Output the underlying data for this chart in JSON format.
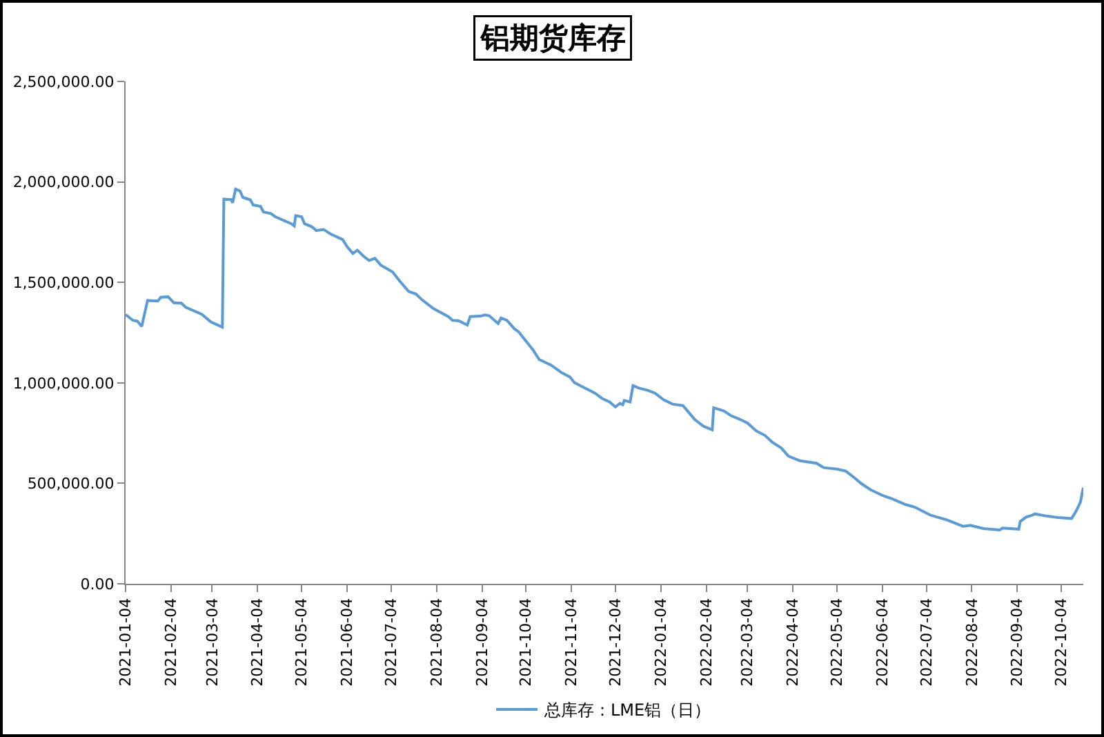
{
  "chart_data": {
    "type": "line",
    "title": "铝期货库存",
    "x": [
      "2021-01-04",
      "2021-01-09",
      "2021-01-12",
      "2021-01-15",
      "2021-01-19",
      "2021-01-26",
      "2021-01-28",
      "2021-02-02",
      "2021-02-06",
      "2021-02-11",
      "2021-02-14",
      "2021-02-25",
      "2021-03-03",
      "2021-03-11",
      "2021-03-12",
      "2021-03-17",
      "2021-03-18",
      "2021-03-20",
      "2021-03-23",
      "2021-03-25",
      "2021-03-30",
      "2021-04-01",
      "2021-04-06",
      "2021-04-08",
      "2021-04-13",
      "2021-04-16",
      "2021-04-27",
      "2021-04-29",
      "2021-04-30",
      "2021-05-04",
      "2021-05-06",
      "2021-05-11",
      "2021-05-14",
      "2021-05-19",
      "2021-05-24",
      "2021-06-01",
      "2021-06-04",
      "2021-06-08",
      "2021-06-11",
      "2021-06-15",
      "2021-06-19",
      "2021-06-23",
      "2021-06-27",
      "2021-07-05",
      "2021-07-10",
      "2021-07-16",
      "2021-07-21",
      "2021-07-25",
      "2021-08-02",
      "2021-08-12",
      "2021-08-15",
      "2021-08-19",
      "2021-08-25",
      "2021-08-27",
      "2021-09-03",
      "2021-09-06",
      "2021-09-09",
      "2021-09-15",
      "2021-09-17",
      "2021-09-21",
      "2021-09-26",
      "2021-09-29",
      "2021-10-04",
      "2021-10-09",
      "2021-10-13",
      "2021-10-21",
      "2021-10-28",
      "2021-11-03",
      "2021-11-06",
      "2021-11-12",
      "2021-11-20",
      "2021-11-25",
      "2021-11-30",
      "2021-12-04",
      "2021-12-07",
      "2021-12-09",
      "2021-12-10",
      "2021-12-14",
      "2021-12-16",
      "2021-12-20",
      "2021-12-26",
      "2021-12-31",
      "2022-01-06",
      "2022-01-12",
      "2022-01-19",
      "2022-01-23",
      "2022-01-27",
      "2022-02-02",
      "2022-02-08",
      "2022-02-09",
      "2022-02-16",
      "2022-02-21",
      "2022-02-27",
      "2022-03-04",
      "2022-03-10",
      "2022-03-16",
      "2022-03-21",
      "2022-03-27",
      "2022-04-01",
      "2022-04-09",
      "2022-04-20",
      "2022-04-25",
      "2022-05-04",
      "2022-05-10",
      "2022-05-16",
      "2022-05-21",
      "2022-05-27",
      "2022-06-04",
      "2022-06-11",
      "2022-06-20",
      "2022-06-26",
      "2022-07-07",
      "2022-07-18",
      "2022-07-29",
      "2022-08-03",
      "2022-08-12",
      "2022-08-23",
      "2022-08-25",
      "2022-09-05",
      "2022-09-06",
      "2022-09-10",
      "2022-09-14",
      "2022-09-16",
      "2022-09-24",
      "2022-10-02",
      "2022-10-11",
      "2022-10-14",
      "2022-10-17",
      "2022-10-19"
    ],
    "series": [
      {
        "name": "总库存：LME铝（日）",
        "color": "#5b9bd5",
        "values": [
          1340000,
          1311000,
          1307000,
          1281000,
          1410000,
          1407000,
          1426000,
          1428000,
          1398000,
          1397000,
          1376000,
          1341000,
          1304000,
          1277000,
          1914000,
          1912000,
          1896000,
          1964000,
          1955000,
          1923000,
          1911000,
          1885000,
          1878000,
          1850000,
          1843000,
          1827000,
          1792000,
          1781000,
          1832000,
          1827000,
          1792000,
          1777000,
          1758000,
          1763000,
          1740000,
          1713000,
          1678000,
          1644000,
          1660000,
          1632000,
          1609000,
          1620000,
          1586000,
          1552000,
          1506000,
          1455000,
          1442000,
          1414000,
          1369000,
          1330000,
          1311000,
          1309000,
          1288000,
          1330000,
          1332000,
          1338000,
          1334000,
          1295000,
          1323000,
          1311000,
          1270000,
          1254000,
          1208000,
          1162000,
          1116000,
          1089000,
          1052000,
          1029000,
          1001000,
          979000,
          949000,
          922000,
          905000,
          880000,
          898000,
          891000,
          912000,
          905000,
          986000,
          974000,
          963000,
          949000,
          915000,
          894000,
          887000,
          853000,
          818000,
          784000,
          766000,
          876000,
          860000,
          836000,
          818000,
          800000,
          761000,
          738000,
          704000,
          676000,
          635000,
          612000,
          600000,
          578000,
          571000,
          561000,
          527000,
          497000,
          468000,
          440000,
          422000,
          394000,
          382000,
          341000,
          318000,
          286000,
          291000,
          275000,
          268000,
          277000,
          272000,
          310000,
          332000,
          341000,
          348000,
          337000,
          330000,
          325000,
          360000,
          406000,
          479000
        ]
      }
    ],
    "xlim": [
      "2021-01-04",
      "2022-10-19"
    ],
    "xticks": [
      "2021-01-04",
      "2021-02-04",
      "2021-03-04",
      "2021-04-04",
      "2021-05-04",
      "2021-06-04",
      "2021-07-04",
      "2021-08-04",
      "2021-09-04",
      "2021-10-04",
      "2021-11-04",
      "2021-12-04",
      "2022-01-04",
      "2022-02-04",
      "2022-03-04",
      "2022-04-04",
      "2022-05-04",
      "2022-06-04",
      "2022-07-04",
      "2022-08-04",
      "2022-09-04",
      "2022-10-04"
    ],
    "ylim": [
      0,
      2500000
    ],
    "yticks": [
      {
        "value": 0,
        "label": "0.00"
      },
      {
        "value": 500000,
        "label": "500,000.00"
      },
      {
        "value": 1000000,
        "label": "1,000,000.00"
      },
      {
        "value": 1500000,
        "label": "1,500,000.00"
      },
      {
        "value": 2000000,
        "label": "2,000,000.00"
      },
      {
        "value": 2500000,
        "label": "2,500,000.00"
      }
    ],
    "grid": false,
    "legend": "bottom",
    "line_style": "solid"
  }
}
